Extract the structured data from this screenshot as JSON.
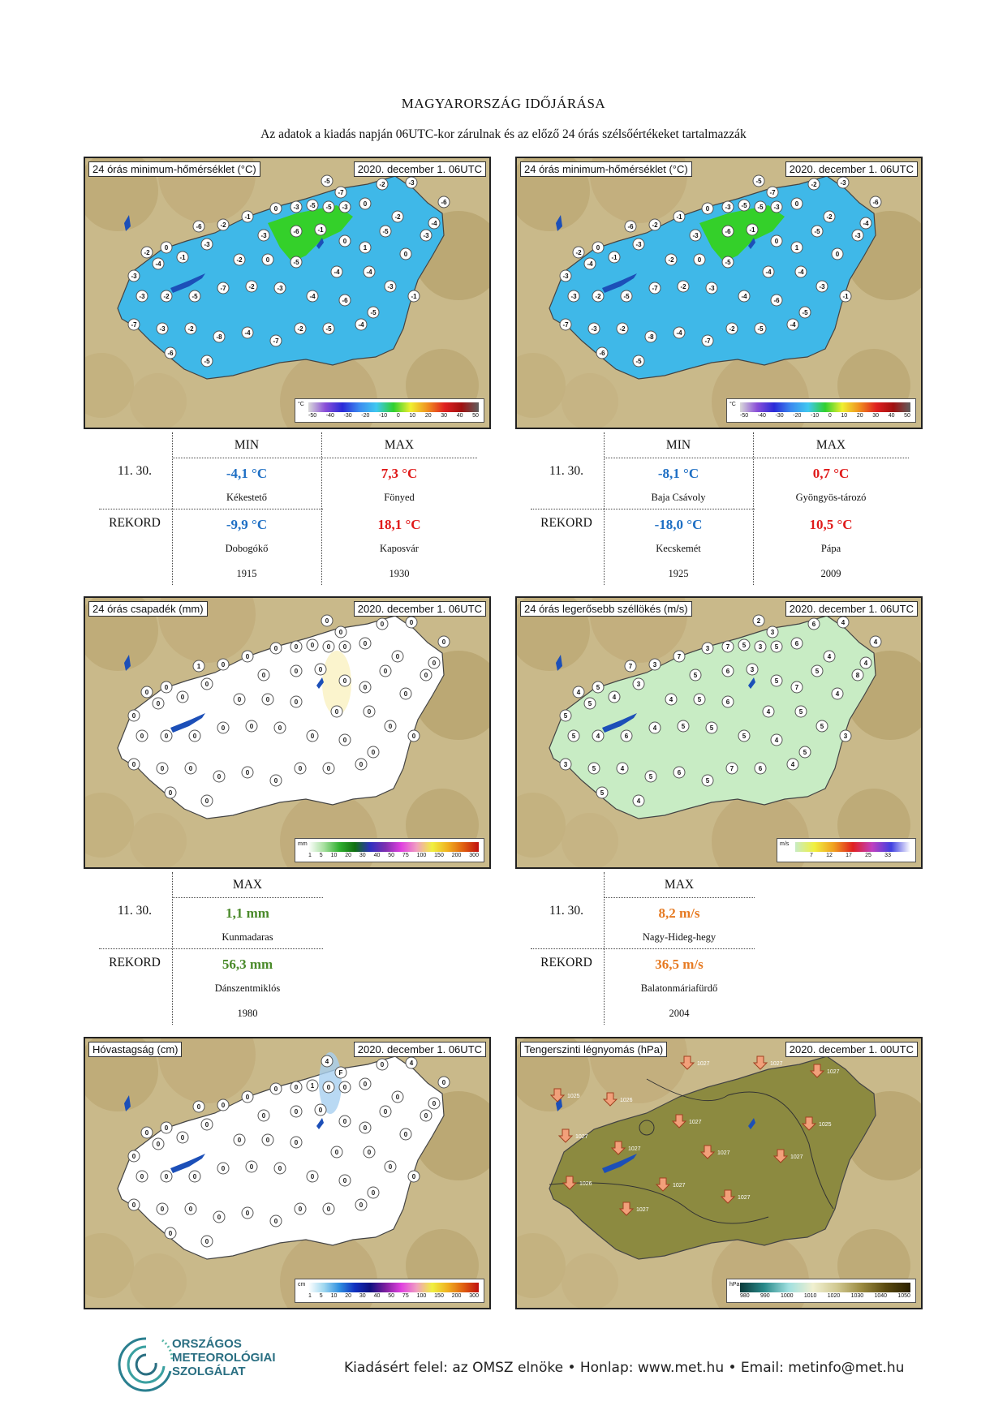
{
  "header": {
    "title": "MAGYARORSZÁG IDŐJÁRÁSA",
    "subtitle": "Az adatok a kiadás napján 06UTC-kor zárulnak és az előző 24 órás szélsőértékeket tartalmazzák"
  },
  "panels": {
    "p1": {
      "title": "24 órás minimum-hőmérséklet (°C)",
      "date": "2020. december 1. 06UTC",
      "legend_unit": "°C",
      "ticks": [
        "-50",
        "-40",
        "-30",
        "-20",
        "-10",
        "0",
        "10",
        "20",
        "30",
        "40",
        "50"
      ],
      "values": [
        "-5",
        "-7",
        "-2",
        "-3",
        "-6",
        "-5",
        "0",
        "-3",
        "-5",
        "-3",
        "0",
        "-1",
        "-2",
        "-5",
        "-3",
        "-4",
        "-2",
        "-6",
        "0",
        "-2",
        "-3",
        "-6",
        "-1",
        "0",
        "1",
        "0",
        "-3",
        "-1",
        "-4",
        "-3",
        "-2",
        "0",
        "-5",
        "-4",
        "-4",
        "-3",
        "-1",
        "-3",
        "-2",
        "-5",
        "-7",
        "-2",
        "-3",
        "-4",
        "-6",
        "-5",
        "-7",
        "-3",
        "-2",
        "-8",
        "-4",
        "-7",
        "-2",
        "-5",
        "-4",
        "-6",
        "-5"
      ]
    },
    "p2": {
      "title": "24 órás minimum-hőmérséklet (°C)",
      "date": "2020. december 1. 06UTC",
      "legend_unit": "°C",
      "ticks": [
        "-50",
        "-40",
        "-30",
        "-20",
        "-10",
        "0",
        "10",
        "20",
        "30",
        "40",
        "50"
      ],
      "values": [
        "-5",
        "-7",
        "-2",
        "-3",
        "-6",
        "-5",
        "0",
        "-3",
        "-5",
        "-3",
        "0",
        "-1",
        "-2",
        "-5",
        "-3",
        "-4",
        "-2",
        "-6",
        "0",
        "-2",
        "-3",
        "-6",
        "-1",
        "0",
        "1",
        "0",
        "-3",
        "-1",
        "-4",
        "-3",
        "-2",
        "0",
        "-5",
        "-4",
        "-4",
        "-3",
        "-1",
        "-3",
        "-2",
        "-5",
        "-7",
        "-2",
        "-3",
        "-4",
        "-6",
        "-5",
        "-7",
        "-3",
        "-2",
        "-8",
        "-4",
        "-7",
        "-2",
        "-5",
        "-4",
        "-6",
        "-5"
      ]
    },
    "p3": {
      "title": "24 órás csapadék (mm)",
      "date": "2020. december 1. 06UTC",
      "legend_unit": "mm",
      "ticks": [
        "1",
        "5",
        "10",
        "20",
        "30",
        "40",
        "50",
        "75",
        "100",
        "150",
        "200",
        "300"
      ],
      "values": [
        "0",
        "0",
        "0",
        "0",
        "0",
        "0",
        "0",
        "0",
        "0",
        "0",
        "0",
        "0",
        "0",
        "0",
        "0",
        "0",
        "0",
        "1",
        "0",
        "0",
        "0",
        "0",
        "0",
        "0",
        "0",
        "0",
        "0",
        "0",
        "0",
        "0",
        "0",
        "0",
        "0",
        "0",
        "0",
        "0",
        "0",
        "0",
        "0",
        "0",
        "0",
        "0",
        "0",
        "0",
        "0",
        "0",
        "0",
        "0",
        "0",
        "0",
        "0",
        "0",
        "0",
        "0",
        "0",
        "0",
        "0"
      ]
    },
    "p4": {
      "title": "24 órás legerősebb széllökés (m/s)",
      "date": "2020. december 1. 06UTC",
      "legend_unit": "m/s",
      "ticks": [
        "7",
        "12",
        "17",
        "25",
        "33"
      ],
      "values": [
        "2",
        "3",
        "6",
        "4",
        "4",
        "5",
        "3",
        "7",
        "3",
        "5",
        "6",
        "7",
        "4",
        "5",
        "8",
        "4",
        "3",
        "7",
        "5",
        "4",
        "5",
        "6",
        "3",
        "5",
        "7",
        "4",
        "3",
        "4",
        "5",
        "5",
        "4",
        "5",
        "6",
        "4",
        "5",
        "5",
        "3",
        "5",
        "4",
        "6",
        "4",
        "5",
        "5",
        "5",
        "4",
        "5",
        "3",
        "5",
        "4",
        "5",
        "6",
        "5",
        "7",
        "6",
        "4",
        "5",
        "4"
      ]
    },
    "p5": {
      "title": "Hóvastagság (cm)",
      "date": "2020. december 1. 06UTC",
      "legend_unit": "cm",
      "ticks": [
        "1",
        "5",
        "10",
        "20",
        "30",
        "40",
        "50",
        "75",
        "100",
        "150",
        "200",
        "300"
      ],
      "values": [
        "4",
        "F",
        "0",
        "4",
        "0",
        "1",
        "0",
        "0",
        "0",
        "0",
        "0",
        "0",
        "0",
        "0",
        "0",
        "0",
        "0",
        "0",
        "0",
        "0",
        "0",
        "0",
        "0",
        "0",
        "0",
        "0",
        "0",
        "0",
        "0",
        "0",
        "0",
        "0",
        "0",
        "0",
        "0",
        "0",
        "0",
        "0",
        "0",
        "0",
        "0",
        "0",
        "0",
        "0",
        "0",
        "0",
        "0",
        "0",
        "0",
        "0",
        "0",
        "0",
        "0",
        "0",
        "0",
        "0",
        "0"
      ]
    },
    "p6": {
      "title": "Tengerszinti légnyomás (hPa)",
      "date": "2020. december 1. 00UTC",
      "legend_unit": "hPa",
      "ticks": [
        "980",
        "990",
        "1000",
        "1010",
        "1020",
        "1030",
        "1040",
        "1050"
      ],
      "values": [
        "1027",
        "1027",
        "1027",
        "1025",
        "1026",
        "1027",
        "1025",
        "1027",
        "1027",
        "1027",
        "1027",
        "1026",
        "1027",
        "1027",
        "1027"
      ]
    }
  },
  "t1": {
    "head_min": "MIN",
    "head_max": "MAX",
    "date": "11. 30.",
    "min_val": "-4,1 °C",
    "min_loc": "Kékestető",
    "max_val": "7,3 °C",
    "max_loc": "Fönyed",
    "rekord": "REKORD",
    "rmin_val": "-9,9 °C",
    "rmin_loc": "Dobogókő",
    "rmin_year": "1915",
    "rmax_val": "18,1 °C",
    "rmax_loc": "Kaposvár",
    "rmax_year": "1930"
  },
  "t2": {
    "head_min": "MIN",
    "head_max": "MAX",
    "date": "11. 30.",
    "min_val": "-8,1 °C",
    "min_loc": "Baja Csávoly",
    "max_val": "0,7 °C",
    "max_loc": "Gyöngyös-tározó",
    "rekord": "REKORD",
    "rmin_val": "-18,0 °C",
    "rmin_loc": "Kecskemét",
    "rmin_year": "1925",
    "rmax_val": "10,5 °C",
    "rmax_loc": "Pápa",
    "rmax_year": "2009"
  },
  "t3": {
    "head_max": "MAX",
    "date": "11. 30.",
    "max_val": "1,1 mm",
    "max_loc": "Kunmadaras",
    "rekord": "REKORD",
    "rmax_val": "56,3 mm",
    "rmax_loc": "Dánszentmiklós",
    "rmax_year": "1980"
  },
  "t4": {
    "head_max": "MAX",
    "date": "11. 30.",
    "max_val": "8,2 m/s",
    "max_loc": "Nagy-Hideg-hegy",
    "rekord": "REKORD",
    "rmax_val": "36,5 m/s",
    "rmax_loc": "Balatonmáriafürdő",
    "rmax_year": "2004"
  },
  "footer": {
    "logo_line1": "ORSZÁGOS",
    "logo_line2": "METEOROLÓGIAI",
    "logo_line3": "SZOLGÁLAT",
    "text": "Kiadásért felel: az OMSZ elnöke • Honlap: www.met.hu • Email: metinfo@met.hu"
  },
  "colors": {
    "temp_fill": "#3fb8e8",
    "temp_warm": "#34d02a",
    "precip_fill": "#ffffff",
    "wind_fill": "#c8ecc4",
    "snow_fill": "#ffffff",
    "pressure_fill": "#8c8a40",
    "background_map": "#cdb98c"
  }
}
